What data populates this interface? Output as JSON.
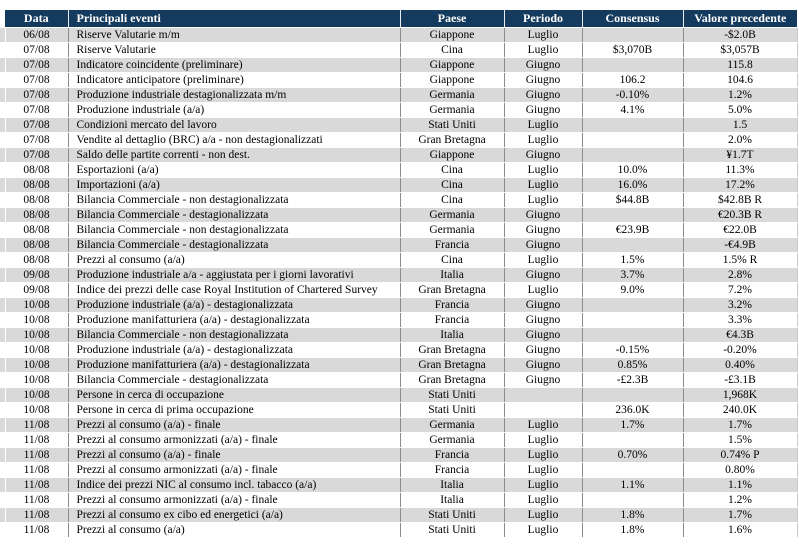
{
  "table": {
    "columns": [
      "Data",
      "Principali eventi",
      "Paese",
      "Periodo",
      "Consensus",
      "Valore precedente"
    ],
    "rows": [
      [
        "06/08",
        "Riserve Valutarie m/m",
        "Giappone",
        "Luglio",
        "",
        "-$2.0B"
      ],
      [
        "07/08",
        "Riserve Valutarie",
        "Cina",
        "Luglio",
        "$3,070B",
        "$3,057B"
      ],
      [
        "07/08",
        "Indicatore coincidente (preliminare)",
        "Giappone",
        "Giugno",
        "",
        "115.8"
      ],
      [
        "07/08",
        "Indicatore anticipatore (preliminare)",
        "Giappone",
        "Giugno",
        "106.2",
        "104.6"
      ],
      [
        "07/08",
        "Produzione industriale destagionalizzata m/m",
        "Germania",
        "Giugno",
        "-0.10%",
        "1.2%"
      ],
      [
        "07/08",
        "Produzione industriale (a/a)",
        "Germania",
        "Giugno",
        "4.1%",
        "5.0%"
      ],
      [
        "07/08",
        "Condizioni mercato del lavoro",
        "Stati Uniti",
        "Luglio",
        "",
        "1.5"
      ],
      [
        "07/08",
        "Vendite al dettaglio (BRC) a/a - non destagionalizzati",
        "Gran Bretagna",
        "Luglio",
        "",
        "2.0%"
      ],
      [
        "07/08",
        "Saldo delle partite correnti - non dest.",
        "Giappone",
        "Giugno",
        "",
        "¥1.7T"
      ],
      [
        "08/08",
        "Esportazioni (a/a)",
        "Cina",
        "Luglio",
        "10.0%",
        "11.3%"
      ],
      [
        "08/08",
        "Importazioni (a/a)",
        "Cina",
        "Luglio",
        "16.0%",
        "17.2%"
      ],
      [
        "08/08",
        "Bilancia Commerciale - non destagionalizzata",
        "Cina",
        "Luglio",
        "$44.8B",
        "$42.8B R"
      ],
      [
        "08/08",
        "Bilancia Commerciale - destagionalizzata",
        "Germania",
        "Giugno",
        "",
        "€20.3B R"
      ],
      [
        "08/08",
        "Bilancia Commerciale - non destagionalizzata",
        "Germania",
        "Giugno",
        "€23.9B",
        "€22.0B"
      ],
      [
        "08/08",
        "Bilancia Commerciale - destagionalizzata",
        "Francia",
        "Giugno",
        "",
        "-€4.9B"
      ],
      [
        "08/08",
        "Prezzi al consumo (a/a)",
        "Cina",
        "Luglio",
        "1.5%",
        "1.5% R"
      ],
      [
        "09/08",
        "Produzione industriale a/a - aggiustata per i giorni lavorativi",
        "Italia",
        "Giugno",
        "3.7%",
        "2.8%"
      ],
      [
        "09/08",
        "Indice dei prezzi delle case Royal Institution of Chartered Survey",
        "Gran Bretagna",
        "Luglio",
        "9.0%",
        "7.2%"
      ],
      [
        "10/08",
        "Produzione industriale (a/a) - destagionalizzata",
        "Francia",
        "Giugno",
        "",
        "3.2%"
      ],
      [
        "10/08",
        "Produzione manifatturiera (a/a) - destagionalizzata",
        "Francia",
        "Giugno",
        "",
        "3.3%"
      ],
      [
        "10/08",
        "Bilancia Commerciale - non destagionalizzata",
        "Italia",
        "Giugno",
        "",
        "€4.3B"
      ],
      [
        "10/08",
        "Produzione industriale (a/a) - destagionalizzata",
        "Gran Bretagna",
        "Giugno",
        "-0.15%",
        "-0.20%"
      ],
      [
        "10/08",
        "Produzione manifatturiera (a/a) - destagionalizzata",
        "Gran Bretagna",
        "Giugno",
        "0.85%",
        "0.40%"
      ],
      [
        "10/08",
        "Bilancia Commerciale - destagionalizzata",
        "Gran Bretagna",
        "Giugno",
        "-£2.3B",
        "-£3.1B"
      ],
      [
        "10/08",
        "Persone in cerca di occupazione",
        "Stati Uniti",
        "",
        "",
        "1,968K"
      ],
      [
        "10/08",
        "Persone in cerca di prima occupazione",
        "Stati Uniti",
        "",
        "236.0K",
        "240.0K"
      ],
      [
        "11/08",
        "Prezzi al consumo (a/a) - finale",
        "Germania",
        "Luglio",
        "1.7%",
        "1.7%"
      ],
      [
        "11/08",
        "Prezzi al consumo armonizzati (a/a) - finale",
        "Germania",
        "Luglio",
        "",
        "1.5%"
      ],
      [
        "11/08",
        "Prezzi al consumo (a/a) - finale",
        "Francia",
        "Luglio",
        "0.70%",
        "0.74% P"
      ],
      [
        "11/08",
        "Prezzi al consumo armonizzati (a/a) - finale",
        "Francia",
        "Luglio",
        "",
        "0.80%"
      ],
      [
        "11/08",
        "Indice dei prezzi NIC al consumo incl. tabacco (a/a)",
        "Italia",
        "Luglio",
        "1.1%",
        "1.1%"
      ],
      [
        "11/08",
        "Prezzi al consumo armonizzati (a/a) - finale",
        "Italia",
        "Luglio",
        "",
        "1.2%"
      ],
      [
        "11/08",
        "Prezzi al consumo ex cibo ed energetici (a/a)",
        "Stati Uniti",
        "Luglio",
        "1.8%",
        "1.7%"
      ],
      [
        "11/08",
        "Prezzi al consumo (a/a)",
        "Stati Uniti",
        "Luglio",
        "1.8%",
        "1.6%"
      ]
    ]
  },
  "colors": {
    "header_bg": "#143A5E",
    "header_text": "#FFFFFF",
    "row_stripe": "#D9D9D9",
    "row_alt": "#FFFFFF",
    "grid_line": "#8C8C8C"
  }
}
